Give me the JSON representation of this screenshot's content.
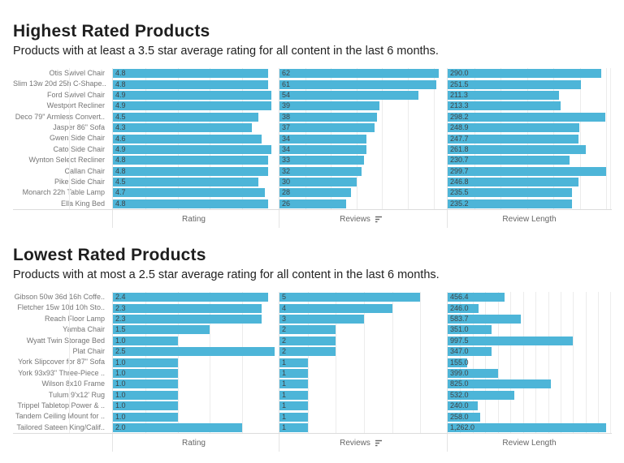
{
  "colors": {
    "bar_fill": "#4db5d8",
    "title_color": "#1e1e1e",
    "row_label_color": "#757575",
    "value_label_color": "#3f4346",
    "gridline_color": "#ececec",
    "pane_border_color": "#e4e4e4"
  },
  "icons": {
    "reviews_sort": "sort-descending"
  },
  "chart_data": [
    {
      "type": "bar",
      "orientation": "horizontal",
      "title": "Highest Rated Products",
      "subtitle": "Products with at least a 3.5 star average rating for all content in the last 6 months.",
      "legend": "none",
      "grid": true,
      "categories": [
        "Otis Swivel Chair",
        "Slim 13w 20d 25h C-Shape..",
        "Ford Swivel Chair",
        "Westport Recliner",
        "Deco 79\" Armless Convert..",
        "Jasper 86\" Sofa",
        "Gwen Side Chair",
        "Cato Side Chair",
        "Wynton Select Recliner",
        "Callan Chair",
        "Pike Side Chair",
        "Monarch 22h Table Lamp",
        "Ella King Bed"
      ],
      "series": [
        {
          "name": "Rating",
          "format": "dec1",
          "xmax": 5.0,
          "grid_step": 1,
          "values": [
            4.8,
            4.8,
            4.9,
            4.9,
            4.5,
            4.3,
            4.6,
            4.9,
            4.8,
            4.8,
            4.5,
            4.7,
            4.8
          ]
        },
        {
          "name": "Reviews",
          "format": "int",
          "xmax": 63.6,
          "grid_step": 10,
          "sorted": "descending",
          "values": [
            62,
            61,
            54,
            39,
            38,
            37,
            34,
            34,
            33,
            32,
            30,
            28,
            26
          ]
        },
        {
          "name": "Review Length",
          "format": "dec1",
          "xmax": 307.4,
          "grid_step": 50,
          "values": [
            290.0,
            251.5,
            211.3,
            213.3,
            298.2,
            248.9,
            247.7,
            261.8,
            230.7,
            299.7,
            246.8,
            235.5,
            235.2
          ]
        }
      ]
    },
    {
      "type": "bar",
      "orientation": "horizontal",
      "title": "Lowest Rated Products",
      "subtitle": "Products with at most a 2.5 star average rating for all content in the last 6 months.",
      "legend": "none",
      "grid": true,
      "categories": [
        "Gibson 50w 36d 16h Coffe..",
        "Fletcher 15w 10d 10h Sto..",
        "Reach Floor Lamp",
        "Yamba Chair",
        "Wyatt Twin Storage Bed",
        "Plat Chair",
        "York Slipcover for 87\" Sofa",
        "York 93x93\" Three-Piece ..",
        "Wilson 8x10 Frame",
        "Tulum 9'x12' Rug",
        "Trippel Tabletop Power & ..",
        "Tandem Ceiling Mount for ..",
        "Tailored Sateen King/Calif.."
      ],
      "series": [
        {
          "name": "Rating",
          "format": "dec1",
          "xmax": 2.5,
          "grid_step": 0.5,
          "values": [
            2.4,
            2.3,
            2.3,
            1.5,
            1.0,
            2.5,
            1.0,
            1.0,
            1.0,
            1.0,
            1.0,
            1.0,
            2.0
          ]
        },
        {
          "name": "Reviews",
          "format": "int",
          "xmax": 5.8,
          "grid_step": 1,
          "sorted": "descending",
          "values": [
            5,
            4,
            3,
            2,
            2,
            2,
            1,
            1,
            1,
            1,
            1,
            1,
            1
          ]
        },
        {
          "name": "Review Length",
          "format": "dec1",
          "xmax": 1295,
          "grid_step": 100,
          "values": [
            456.4,
            246.0,
            583.7,
            351.0,
            997.5,
            347.0,
            155.0,
            399.0,
            825.0,
            532.0,
            240.0,
            258.0,
            1262.0
          ]
        }
      ]
    }
  ]
}
